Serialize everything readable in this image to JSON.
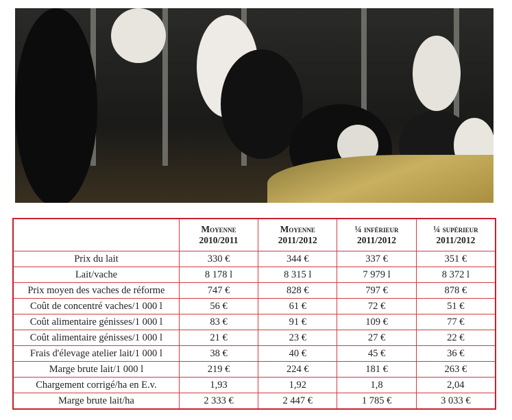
{
  "photo": {
    "alt_subject": "cows-at-feeding-barrier"
  },
  "table": {
    "headers": [
      {
        "line1": "Moyenne",
        "line2": "2010/2011"
      },
      {
        "line1": "Moyenne",
        "line2": "2011/2012"
      },
      {
        "line1": "¼ inférieur",
        "line2": "2011/2012"
      },
      {
        "line1": "¼ supérieur",
        "line2": "2011/2012"
      }
    ],
    "rows": [
      {
        "label": "Prix du lait",
        "values": [
          "330 €",
          "344 €",
          "337 €",
          "351 €"
        ]
      },
      {
        "label": "Lait/vache",
        "values": [
          "8 178 l",
          "8 315 l",
          "7 979 l",
          "8 372 l"
        ]
      },
      {
        "label": "Prix moyen des vaches de réforme",
        "values": [
          "747 €",
          "828 €",
          "797 €",
          "878 €"
        ]
      },
      {
        "label": "Coût de concentré vaches/1 000 l",
        "values": [
          "56 €",
          "61 €",
          "72 €",
          "51 €"
        ]
      },
      {
        "label": "Coût alimentaire génisses/1 000 l",
        "values": [
          "83 €",
          "91 €",
          "109 €",
          "77 €"
        ]
      },
      {
        "label": "Coût alimentaire génisses/1 000 l",
        "values": [
          "21 €",
          "23 €",
          "27 €",
          "22 €"
        ]
      },
      {
        "label": "Frais d'élevage atelier lait/1 000 l",
        "values": [
          "38 €",
          "40 €",
          "45 €",
          "36 €"
        ]
      },
      {
        "label": "Marge brute lait/1 000 l",
        "values": [
          "219 €",
          "224 €",
          "181 €",
          "263 €"
        ]
      },
      {
        "label": "Chargement corrigé/ha en E.v.",
        "values": [
          "1,93",
          "1,92",
          "1,8",
          "2,04"
        ]
      },
      {
        "label": "Marge brute lait/ha",
        "values": [
          "2 333 €",
          "2 447 €",
          "1 785 €",
          "3 033 €"
        ]
      }
    ]
  },
  "colors": {
    "table_border": "#c8202a"
  }
}
